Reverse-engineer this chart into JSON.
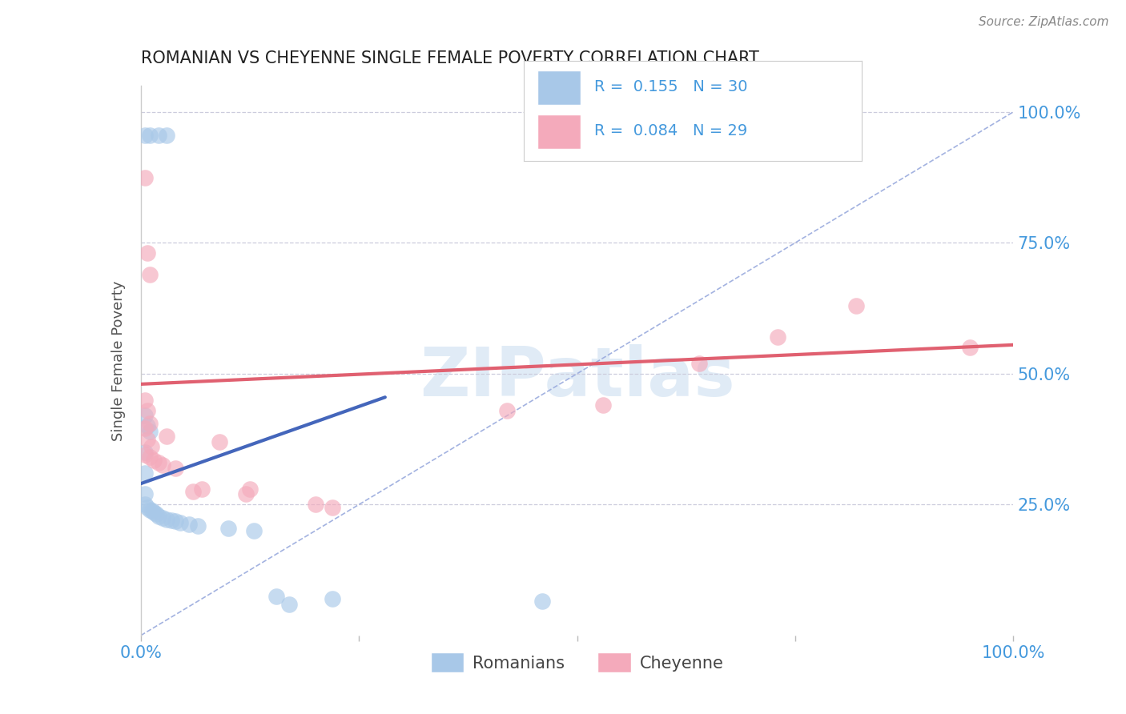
{
  "title": "ROMANIAN VS CHEYENNE SINGLE FEMALE POVERTY CORRELATION CHART",
  "source": "Source: ZipAtlas.com",
  "ylabel": "Single Female Poverty",
  "watermark": "ZIPatlas",
  "legend_blue_R": "0.155",
  "legend_blue_N": "30",
  "legend_pink_R": "0.084",
  "legend_pink_N": "29",
  "blue_color": "#A8C8E8",
  "pink_color": "#F4AABB",
  "blue_line_color": "#4466BB",
  "pink_line_color": "#E06070",
  "ref_line_color": "#99AADD",
  "grid_color": "#CCCCDD",
  "title_color": "#222222",
  "axis_label_color": "#4499DD",
  "blue_scatter": [
    [
      0.005,
      0.955
    ],
    [
      0.01,
      0.955
    ],
    [
      0.02,
      0.955
    ],
    [
      0.03,
      0.955
    ],
    [
      0.005,
      0.35
    ],
    [
      0.005,
      0.31
    ],
    [
      0.005,
      0.42
    ],
    [
      0.008,
      0.4
    ],
    [
      0.01,
      0.39
    ],
    [
      0.005,
      0.27
    ],
    [
      0.005,
      0.25
    ],
    [
      0.008,
      0.245
    ],
    [
      0.01,
      0.24
    ],
    [
      0.013,
      0.238
    ],
    [
      0.015,
      0.235
    ],
    [
      0.018,
      0.232
    ],
    [
      0.02,
      0.228
    ],
    [
      0.025,
      0.225
    ],
    [
      0.03,
      0.222
    ],
    [
      0.035,
      0.22
    ],
    [
      0.04,
      0.218
    ],
    [
      0.045,
      0.215
    ],
    [
      0.055,
      0.212
    ],
    [
      0.065,
      0.21
    ],
    [
      0.1,
      0.205
    ],
    [
      0.13,
      0.2
    ],
    [
      0.155,
      0.075
    ],
    [
      0.17,
      0.06
    ],
    [
      0.22,
      0.07
    ],
    [
      0.46,
      0.065
    ]
  ],
  "pink_scatter": [
    [
      0.005,
      0.875
    ],
    [
      0.008,
      0.73
    ],
    [
      0.01,
      0.69
    ],
    [
      0.005,
      0.45
    ],
    [
      0.008,
      0.43
    ],
    [
      0.01,
      0.405
    ],
    [
      0.005,
      0.395
    ],
    [
      0.008,
      0.375
    ],
    [
      0.012,
      0.36
    ],
    [
      0.005,
      0.345
    ],
    [
      0.01,
      0.34
    ],
    [
      0.015,
      0.335
    ],
    [
      0.02,
      0.33
    ],
    [
      0.025,
      0.325
    ],
    [
      0.03,
      0.38
    ],
    [
      0.04,
      0.32
    ],
    [
      0.06,
      0.275
    ],
    [
      0.07,
      0.28
    ],
    [
      0.09,
      0.37
    ],
    [
      0.12,
      0.27
    ],
    [
      0.125,
      0.28
    ],
    [
      0.2,
      0.25
    ],
    [
      0.22,
      0.245
    ],
    [
      0.53,
      0.44
    ],
    [
      0.64,
      0.52
    ],
    [
      0.73,
      0.57
    ],
    [
      0.82,
      0.63
    ],
    [
      0.42,
      0.43
    ],
    [
      0.95,
      0.55
    ]
  ],
  "blue_line_x": [
    0.0,
    0.28
  ],
  "blue_line_y": [
    0.29,
    0.455
  ],
  "pink_line_x": [
    0.0,
    1.0
  ],
  "pink_line_y": [
    0.48,
    0.555
  ],
  "ref_line_x": [
    0.0,
    1.0
  ],
  "ref_line_y": [
    0.0,
    1.0
  ],
  "xlim": [
    0.0,
    1.0
  ],
  "ylim": [
    0.0,
    1.05
  ],
  "xticks": [
    0.0,
    0.25,
    0.5,
    0.75,
    1.0
  ],
  "yticks": [
    0.25,
    0.5,
    0.75,
    1.0
  ],
  "xticklabels": [
    "0.0%",
    "",
    "",
    "",
    "100.0%"
  ],
  "yticklabels": [
    "25.0%",
    "50.0%",
    "75.0%",
    "100.0%"
  ],
  "legend_labels": [
    "Romanians",
    "Cheyenne"
  ],
  "figsize": [
    14.06,
    8.92
  ],
  "dpi": 100
}
